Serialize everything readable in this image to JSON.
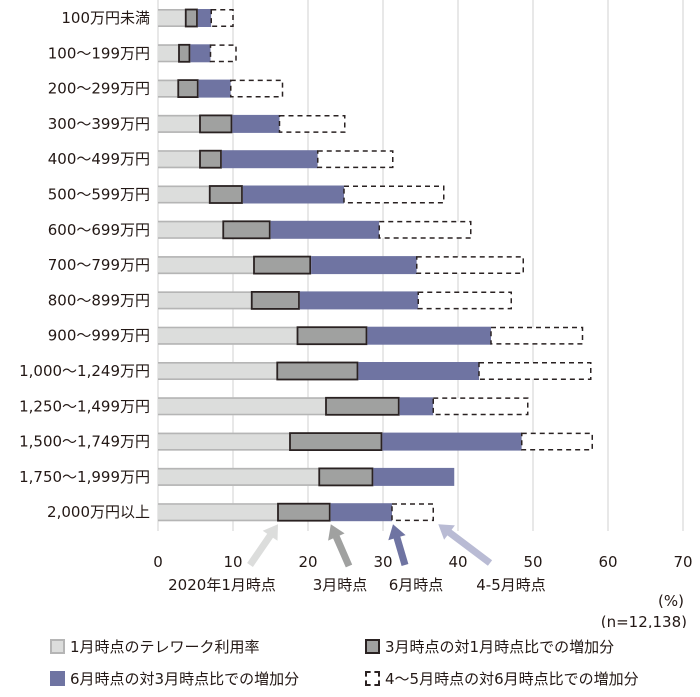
{
  "chart_data": {
    "type": "bar",
    "orientation": "horizontal",
    "stacked": true,
    "title": "",
    "xlabel": "",
    "unit_label": "(%)",
    "sample_note": "(n=12,138)",
    "xlim": [
      0,
      70
    ],
    "xticks": [
      0,
      10,
      20,
      30,
      40,
      50,
      60,
      70
    ],
    "grid": true,
    "legend_position": "bottom",
    "categories": [
      "100万円未満",
      "100～199万円",
      "200～299万円",
      "300～399万円",
      "400～499万円",
      "500～599万円",
      "600～699万円",
      "700～799万円",
      "800～899万円",
      "900～999万円",
      "1,000～1,249万円",
      "1,250～1,499万円",
      "1,500～1,749万円",
      "1,750～1,999万円",
      "2,000万円以上"
    ],
    "series": [
      {
        "name": "1月時点のテレワーク利用率",
        "key": "jan",
        "color": "#dcdddc",
        "values": [
          3.7,
          2.8,
          2.7,
          5.6,
          5.6,
          6.9,
          8.7,
          12.8,
          12.5,
          18.6,
          15.9,
          22.4,
          17.6,
          21.5,
          16.0
        ]
      },
      {
        "name": "3月時点の対1月時点比での増加分",
        "key": "mar",
        "color": "#a0a1a0",
        "values": [
          1.5,
          1.4,
          2.6,
          4.2,
          2.8,
          4.3,
          6.2,
          7.5,
          6.3,
          9.2,
          10.7,
          9.7,
          12.2,
          7.1,
          6.9
        ]
      },
      {
        "name": "6月時点の対3月時点比での増加分",
        "key": "jun",
        "color": "#6f74a2",
        "values": [
          1.9,
          2.8,
          4.4,
          6.4,
          12.9,
          13.6,
          14.6,
          14.2,
          15.9,
          16.6,
          16.2,
          4.6,
          18.7,
          10.9,
          8.3
        ]
      },
      {
        "name": "4～5月時点の対6月時点比での増加分",
        "key": "aprmay",
        "color": "#ffffff",
        "values": [
          2.9,
          3.4,
          6.9,
          8.7,
          10.0,
          13.3,
          12.2,
          14.2,
          12.4,
          12.2,
          14.9,
          12.6,
          9.4,
          0,
          5.5
        ]
      }
    ],
    "annotations": [
      {
        "text": "2020年1月時点",
        "points_to": "jan",
        "color": "#dcdddc"
      },
      {
        "text": "3月時点",
        "points_to": "mar",
        "color": "#a0a1a0"
      },
      {
        "text": "6月時点",
        "points_to": "jun",
        "color": "#6f74a2"
      },
      {
        "text": "4-5月時点",
        "points_to": "aprmay",
        "color": "#b9bbd4"
      }
    ],
    "annotated_category_index": 14
  },
  "legend": {
    "items": [
      {
        "label": "1月時点のテレワーク利用率",
        "key": "jan"
      },
      {
        "label": "3月時点の対1月時点比での増加分",
        "key": "mar"
      },
      {
        "label": "6月時点の対3月時点比での増加分",
        "key": "jun"
      },
      {
        "label": "4～5月時点の対6月時点比での増加分",
        "key": "aprmay"
      }
    ]
  }
}
